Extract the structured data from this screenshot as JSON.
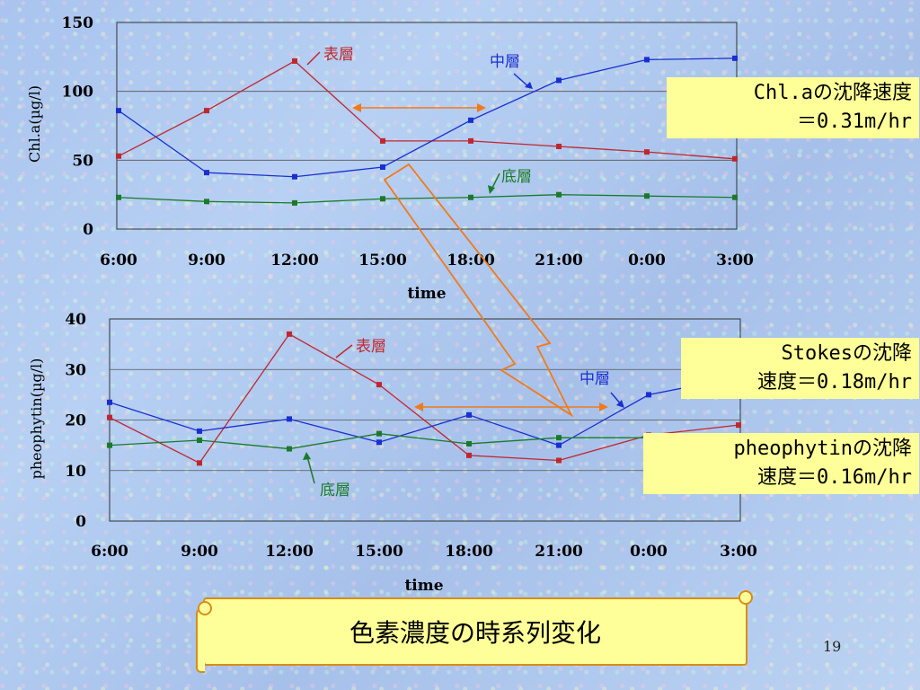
{
  "chart_data": [
    {
      "type": "line",
      "x": [
        "6:00",
        "9:00",
        "12:00",
        "15:00",
        "18:00",
        "21:00",
        "0:00",
        "3:00"
      ],
      "xlabel": "time",
      "ylabel": "Chl.a(µg/l)",
      "ylim": [
        0,
        150
      ],
      "yticks": [
        0,
        50,
        100,
        150
      ],
      "grid": true,
      "series": [
        {
          "name": "表層",
          "color": "#c0272d",
          "values": [
            53,
            86,
            122,
            64,
            64,
            60,
            56,
            51
          ]
        },
        {
          "name": "中層",
          "color": "#1a2fd0",
          "values": [
            86,
            41,
            38,
            45,
            79,
            108,
            123,
            124
          ]
        },
        {
          "name": "底層",
          "color": "#1a7a2a",
          "values": [
            23,
            20,
            19,
            22,
            23,
            25,
            24,
            23
          ]
        }
      ]
    },
    {
      "type": "line",
      "x": [
        "6:00",
        "9:00",
        "12:00",
        "15:00",
        "18:00",
        "21:00",
        "0:00",
        "3:00"
      ],
      "xlabel": "time",
      "ylabel": "pheophytin(µg/l)",
      "ylim": [
        0,
        40
      ],
      "yticks": [
        0,
        10,
        20,
        30,
        40
      ],
      "grid": true,
      "series": [
        {
          "name": "表層",
          "color": "#c0272d",
          "values": [
            20.5,
            11.5,
            37,
            27,
            13,
            12,
            17,
            19
          ]
        },
        {
          "name": "中層",
          "color": "#1a2fd0",
          "values": [
            23.5,
            17.8,
            20.2,
            15.6,
            21,
            15,
            25,
            28.5
          ]
        },
        {
          "name": "底層",
          "color": "#1a7a2a",
          "values": [
            15,
            16,
            14.3,
            17.3,
            15.3,
            16.5,
            16.5,
            16.5
          ]
        }
      ]
    }
  ],
  "notes": {
    "chla": "Chl.aの沈降速度\n＝0.31m/hr",
    "stokes": "Stokesの沈降\n速度＝0.18m/hr",
    "pheo": "pheophytinの沈降\n速度＝0.16m/hr"
  },
  "banner": "色素濃度の時系列変化",
  "page_number": "19"
}
